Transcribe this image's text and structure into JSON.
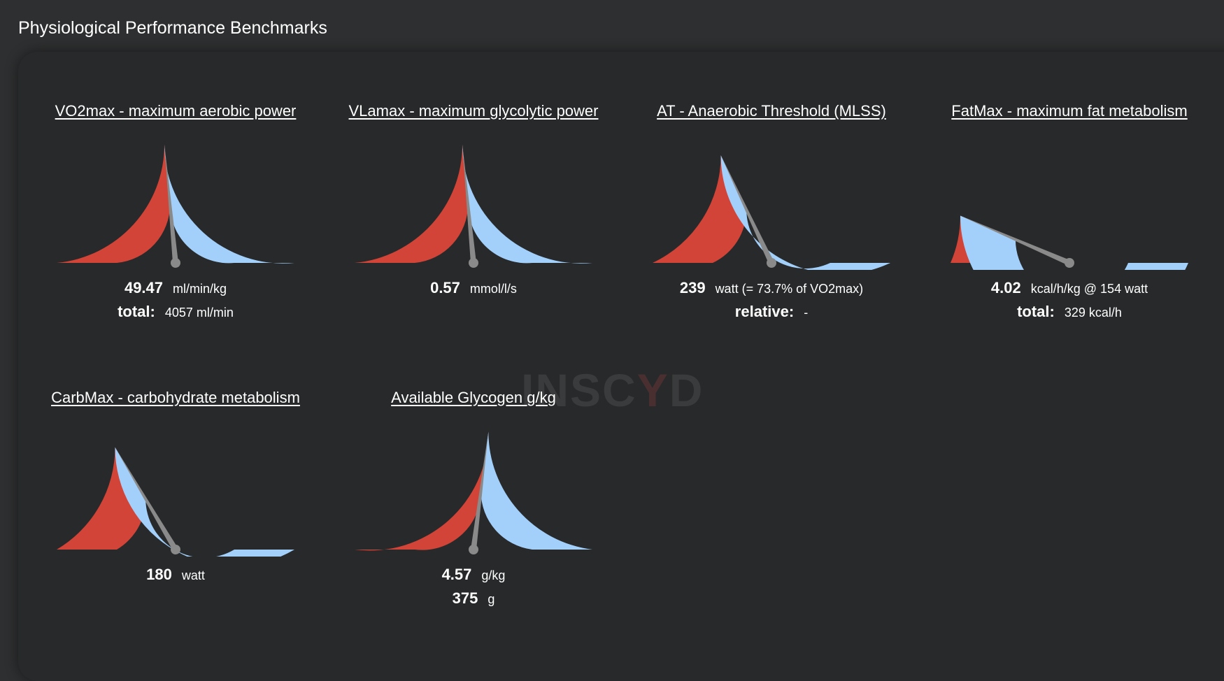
{
  "page": {
    "title": "Physiological Performance Benchmarks"
  },
  "watermark": {
    "part1": "INSC",
    "part2": "Y",
    "part3": "D"
  },
  "colors": {
    "red": "#d14437",
    "blue": "#a3d0fb",
    "needle": "#8a8a8a",
    "panel": "#27292a"
  },
  "gauges": [
    {
      "title": "VO2max - maximum aerobic power",
      "level": 0.47,
      "lines": [
        {
          "value": "49.47",
          "unit": "ml/min/kg"
        },
        {
          "value": "total:",
          "unit": "4057 ml/min"
        }
      ]
    },
    {
      "title": "VLamax - maximum glycolytic power",
      "level": 0.47,
      "lines": [
        {
          "value": "0.57",
          "unit": "mmol/l/s"
        }
      ]
    },
    {
      "title": "AT - Anaerobic Threshold (MLSS)",
      "level": 0.36,
      "lines": [
        {
          "value": "239",
          "unit": "watt (= 73.7% of VO2max)"
        },
        {
          "value": "relative:",
          "unit": "-"
        }
      ]
    },
    {
      "title": "FatMax - maximum fat metabolism",
      "level": 0.13,
      "lines": [
        {
          "value": "4.02",
          "unit": "kcal/h/kg @ 154 watt"
        },
        {
          "value": "total:",
          "unit": "329 kcal/h"
        }
      ]
    },
    {
      "title": "CarbMax - carbohydrate metabolism",
      "level": 0.33,
      "lines": [
        {
          "value": "180",
          "unit": "watt"
        }
      ]
    },
    {
      "title": "Available Glycogen g/kg",
      "level": 0.54,
      "lines": [
        {
          "value": "4.57",
          "unit": "g/kg"
        },
        {
          "value": "375",
          "unit": "g"
        }
      ]
    }
  ]
}
